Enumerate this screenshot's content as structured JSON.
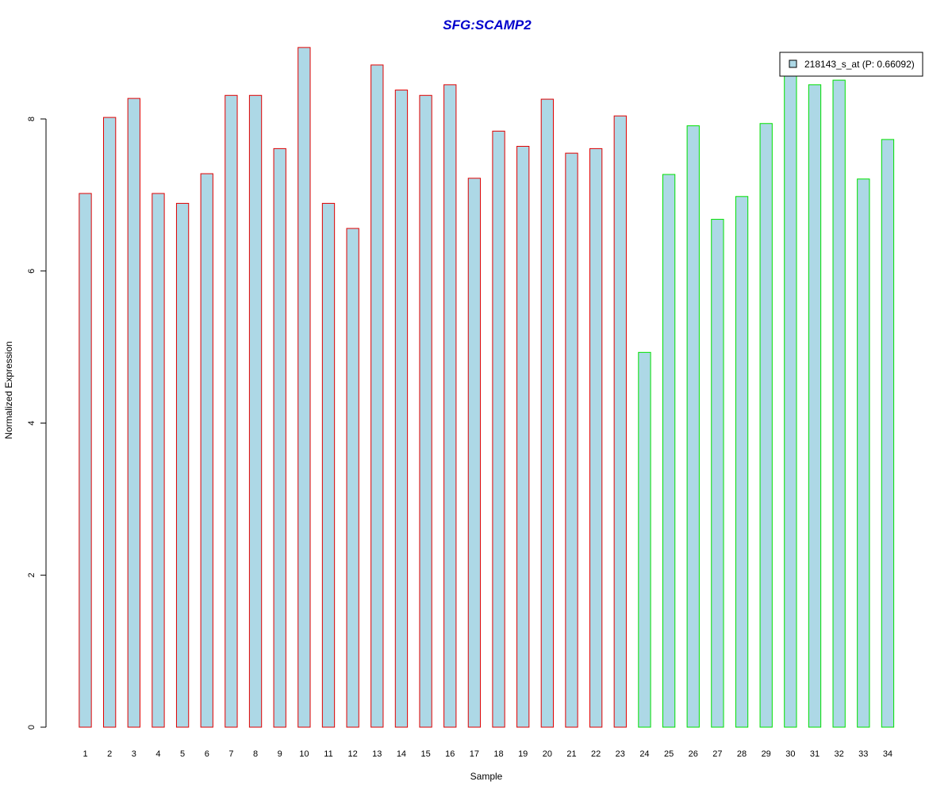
{
  "chart_data": {
    "type": "bar",
    "title": "SFG:SCAMP2",
    "xlabel": "Sample",
    "ylabel": "Normalized Expression",
    "categories": [
      "1",
      "2",
      "3",
      "4",
      "5",
      "6",
      "7",
      "8",
      "9",
      "10",
      "11",
      "12",
      "13",
      "14",
      "15",
      "16",
      "17",
      "18",
      "19",
      "20",
      "21",
      "22",
      "23",
      "24",
      "25",
      "26",
      "27",
      "28",
      "29",
      "30",
      "31",
      "32",
      "33",
      "34"
    ],
    "series": [
      {
        "name": "218143_s_at (P: 0.66092)",
        "values": [
          7.02,
          8.02,
          8.27,
          7.02,
          6.89,
          7.28,
          8.31,
          8.31,
          7.61,
          8.94,
          6.89,
          6.56,
          8.71,
          8.38,
          8.31,
          8.45,
          7.22,
          7.84,
          7.64,
          8.26,
          7.55,
          7.61,
          8.04,
          4.93,
          7.27,
          7.91,
          6.68,
          6.98,
          7.94,
          8.62,
          8.45,
          8.51,
          7.21,
          7.73
        ]
      }
    ],
    "groups": [
      {
        "start": 1,
        "end": 23,
        "border_color": "#e00000"
      },
      {
        "start": 24,
        "end": 34,
        "border_color": "#00e000"
      }
    ],
    "bar_fill": "#add8e6",
    "title_color": "#0000cc",
    "ylim": [
      0,
      9
    ],
    "yticks": [
      0,
      2,
      4,
      6,
      8
    ],
    "legend": {
      "label": "218143_s_at (P: 0.66092)",
      "position": "top-right"
    },
    "grid": false
  }
}
